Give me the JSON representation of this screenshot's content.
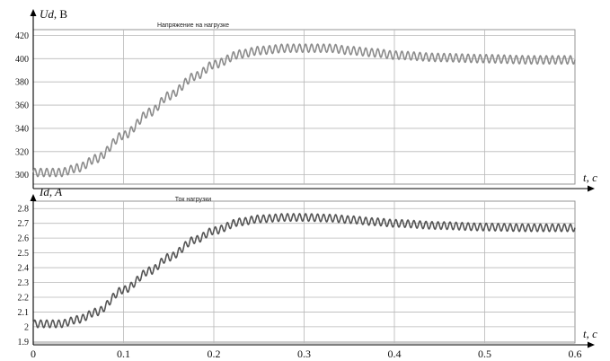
{
  "chart_data": [
    {
      "type": "line",
      "title": "Напряжение на нагрузке",
      "ylabel_main": "Ud",
      "ylabel_unit": ", В",
      "xlabel": "t, c",
      "xlim": [
        0,
        0.6
      ],
      "ylim": [
        292,
        425
      ],
      "yticks": [
        "300",
        "320",
        "340",
        "360",
        "380",
        "400",
        "420"
      ],
      "grid": true,
      "series": [
        {
          "color": "#8c8c8c",
          "ripple_amplitude": 3.5,
          "ripple_frequency_hz": 150,
          "x": [
            0,
            0.03,
            0.05,
            0.07,
            0.1,
            0.13,
            0.15,
            0.18,
            0.2,
            0.23,
            0.25,
            0.28,
            0.3,
            0.33,
            0.35,
            0.38,
            0.4,
            0.45,
            0.5,
            0.55,
            0.6
          ],
          "y": [
            302,
            302,
            306,
            314,
            334,
            354,
            368,
            385,
            395,
            404,
            407,
            409,
            409,
            409,
            407,
            405,
            403,
            401,
            400,
            399,
            399
          ]
        }
      ]
    },
    {
      "type": "line",
      "title": "Ток нагрузки",
      "ylabel_main": "Id, A",
      "ylabel_unit": "",
      "xlabel": "t, c",
      "xlim": [
        0,
        0.6
      ],
      "ylim": [
        1.89,
        2.85
      ],
      "yticks": [
        "1.9",
        "2",
        "2.1",
        "2.2",
        "2.3",
        "2.4",
        "2.5",
        "2.6",
        "2.7",
        "2.8"
      ],
      "xticks": [
        "0",
        "0.1",
        "0.2",
        "0.3",
        "0.4",
        "0.5",
        "0.6"
      ],
      "grid": true,
      "series": [
        {
          "color": "#555555",
          "ripple_amplitude": 0.025,
          "ripple_frequency_hz": 150,
          "x": [
            0,
            0.03,
            0.05,
            0.07,
            0.1,
            0.13,
            0.15,
            0.18,
            0.2,
            0.23,
            0.25,
            0.28,
            0.3,
            0.33,
            0.35,
            0.38,
            0.4,
            0.45,
            0.5,
            0.55,
            0.6
          ],
          "y": [
            2.02,
            2.02,
            2.05,
            2.1,
            2.25,
            2.38,
            2.47,
            2.59,
            2.65,
            2.71,
            2.73,
            2.74,
            2.74,
            2.735,
            2.725,
            2.71,
            2.7,
            2.685,
            2.675,
            2.67,
            2.67
          ]
        }
      ]
    }
  ]
}
